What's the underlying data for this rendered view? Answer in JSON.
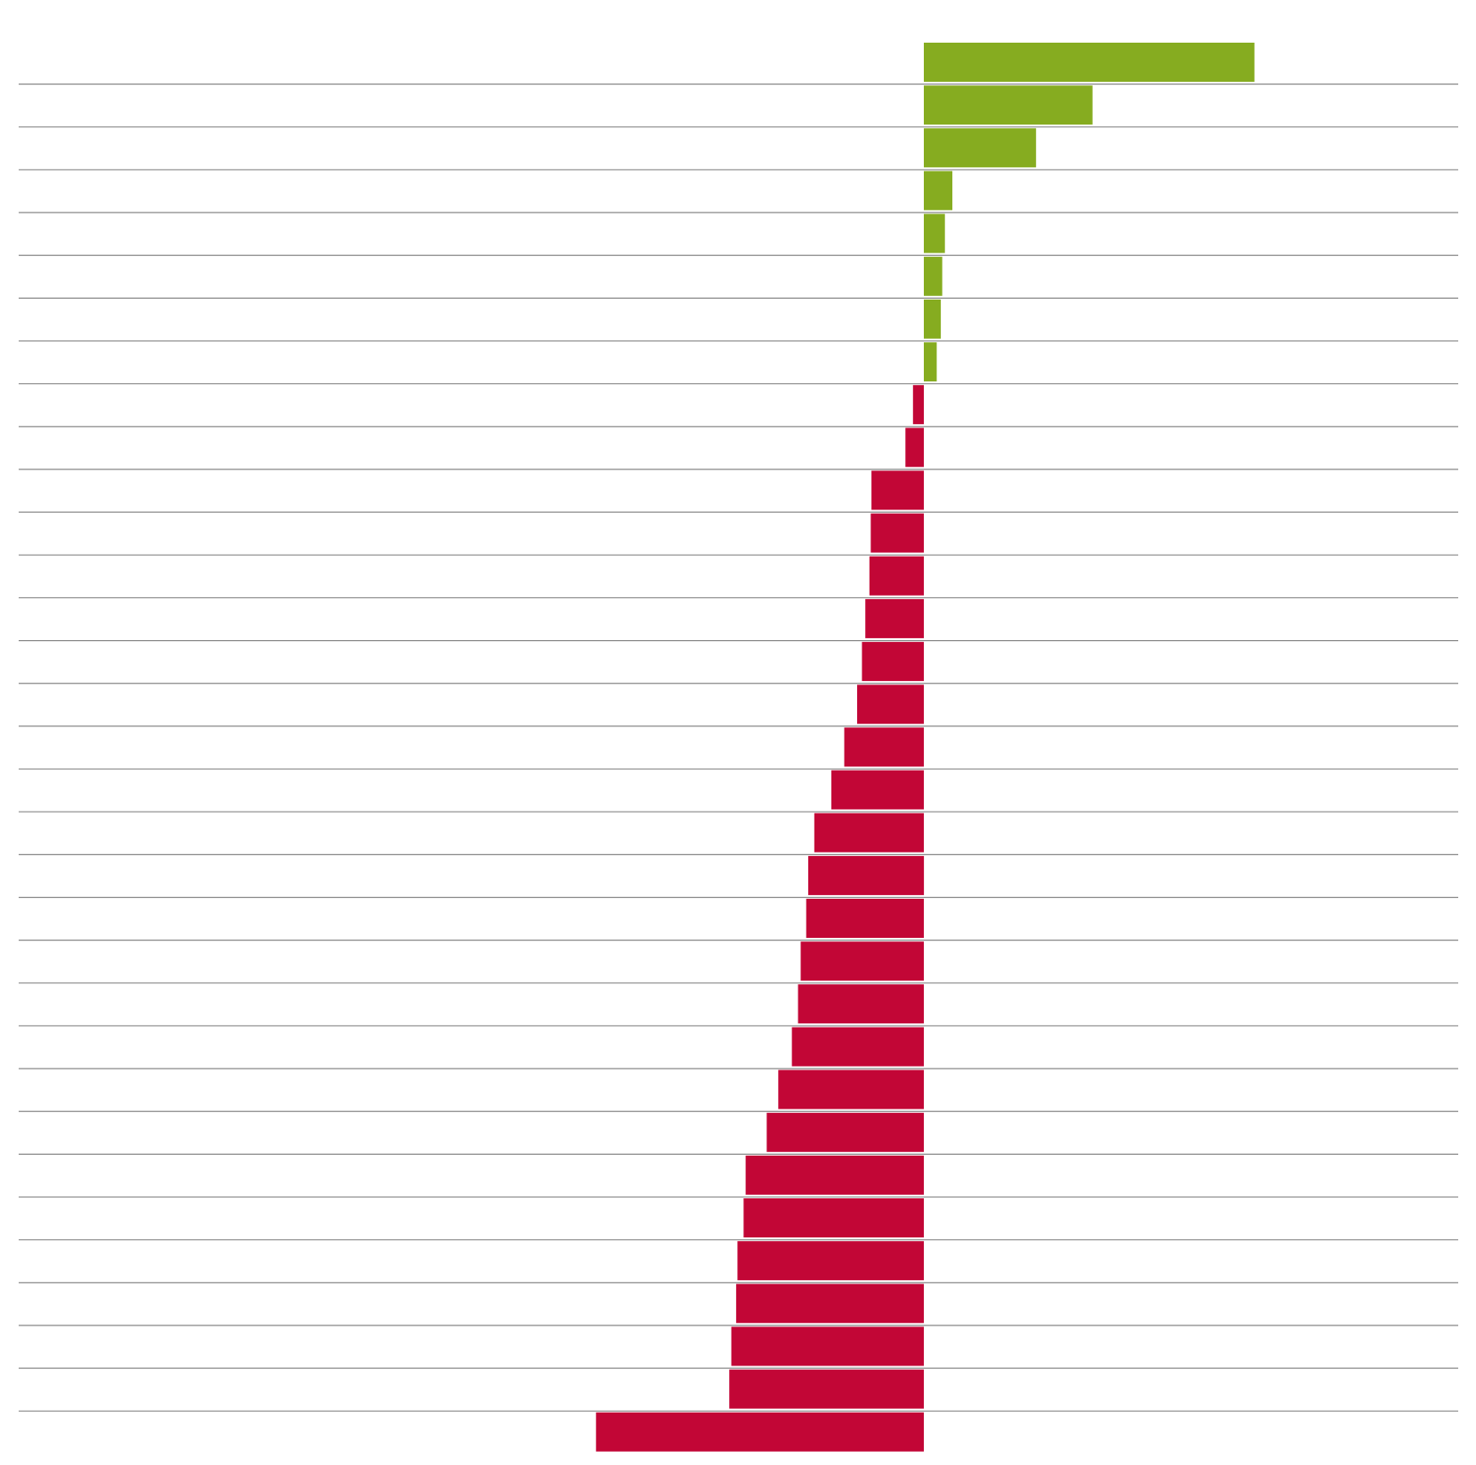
{
  "chart_data": {
    "type": "bar",
    "orientation": "horizontal",
    "title": "",
    "xlabel": "",
    "ylabel": "",
    "grid": true,
    "xlim": [
      -100,
      100
    ],
    "colors": {
      "positive": "#86AC20",
      "negative": "#C20636",
      "grid": "#888888"
    },
    "values": [
      48.6,
      24.8,
      16.5,
      4.2,
      3.1,
      2.7,
      2.5,
      1.9,
      -1.6,
      -2.7,
      -7.7,
      -7.8,
      -8.0,
      -8.6,
      -9.1,
      -9.8,
      -11.7,
      -13.6,
      -16.1,
      -17.0,
      -17.3,
      -18.1,
      -18.5,
      -19.4,
      -21.4,
      -23.1,
      -26.2,
      -26.5,
      -27.4,
      -27.6,
      -28.3,
      -28.6,
      -48.2
    ]
  }
}
